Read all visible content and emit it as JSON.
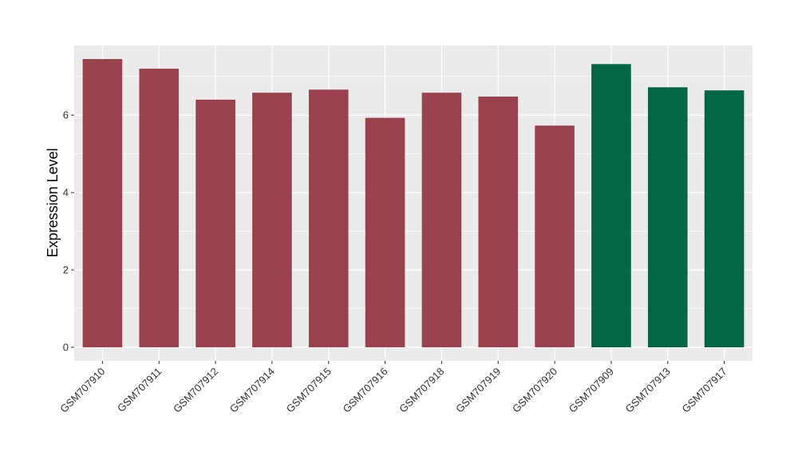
{
  "chart_data": {
    "type": "bar",
    "categories": [
      "GSM707910",
      "GSM707911",
      "GSM707912",
      "GSM707914",
      "GSM707915",
      "GSM707916",
      "GSM707918",
      "GSM707919",
      "GSM707920",
      "GSM707909",
      "GSM707913",
      "GSM707917"
    ],
    "values": [
      7.45,
      7.2,
      6.4,
      6.58,
      6.66,
      5.93,
      6.58,
      6.48,
      5.73,
      7.32,
      6.72,
      6.64
    ],
    "bar_colors": [
      "#99414f",
      "#99414f",
      "#99414f",
      "#99414f",
      "#99414f",
      "#99414f",
      "#99414f",
      "#99414f",
      "#99414f",
      "#006644",
      "#006644",
      "#006644"
    ],
    "title": "",
    "xlabel": "",
    "ylabel": "Expression Level",
    "ylim": [
      -0.35,
      7.8
    ],
    "yticks": [
      0,
      2,
      4,
      6
    ],
    "grid": true,
    "legend": "none",
    "panel_background": "#ebebeb",
    "grid_color": "#ffffff"
  }
}
